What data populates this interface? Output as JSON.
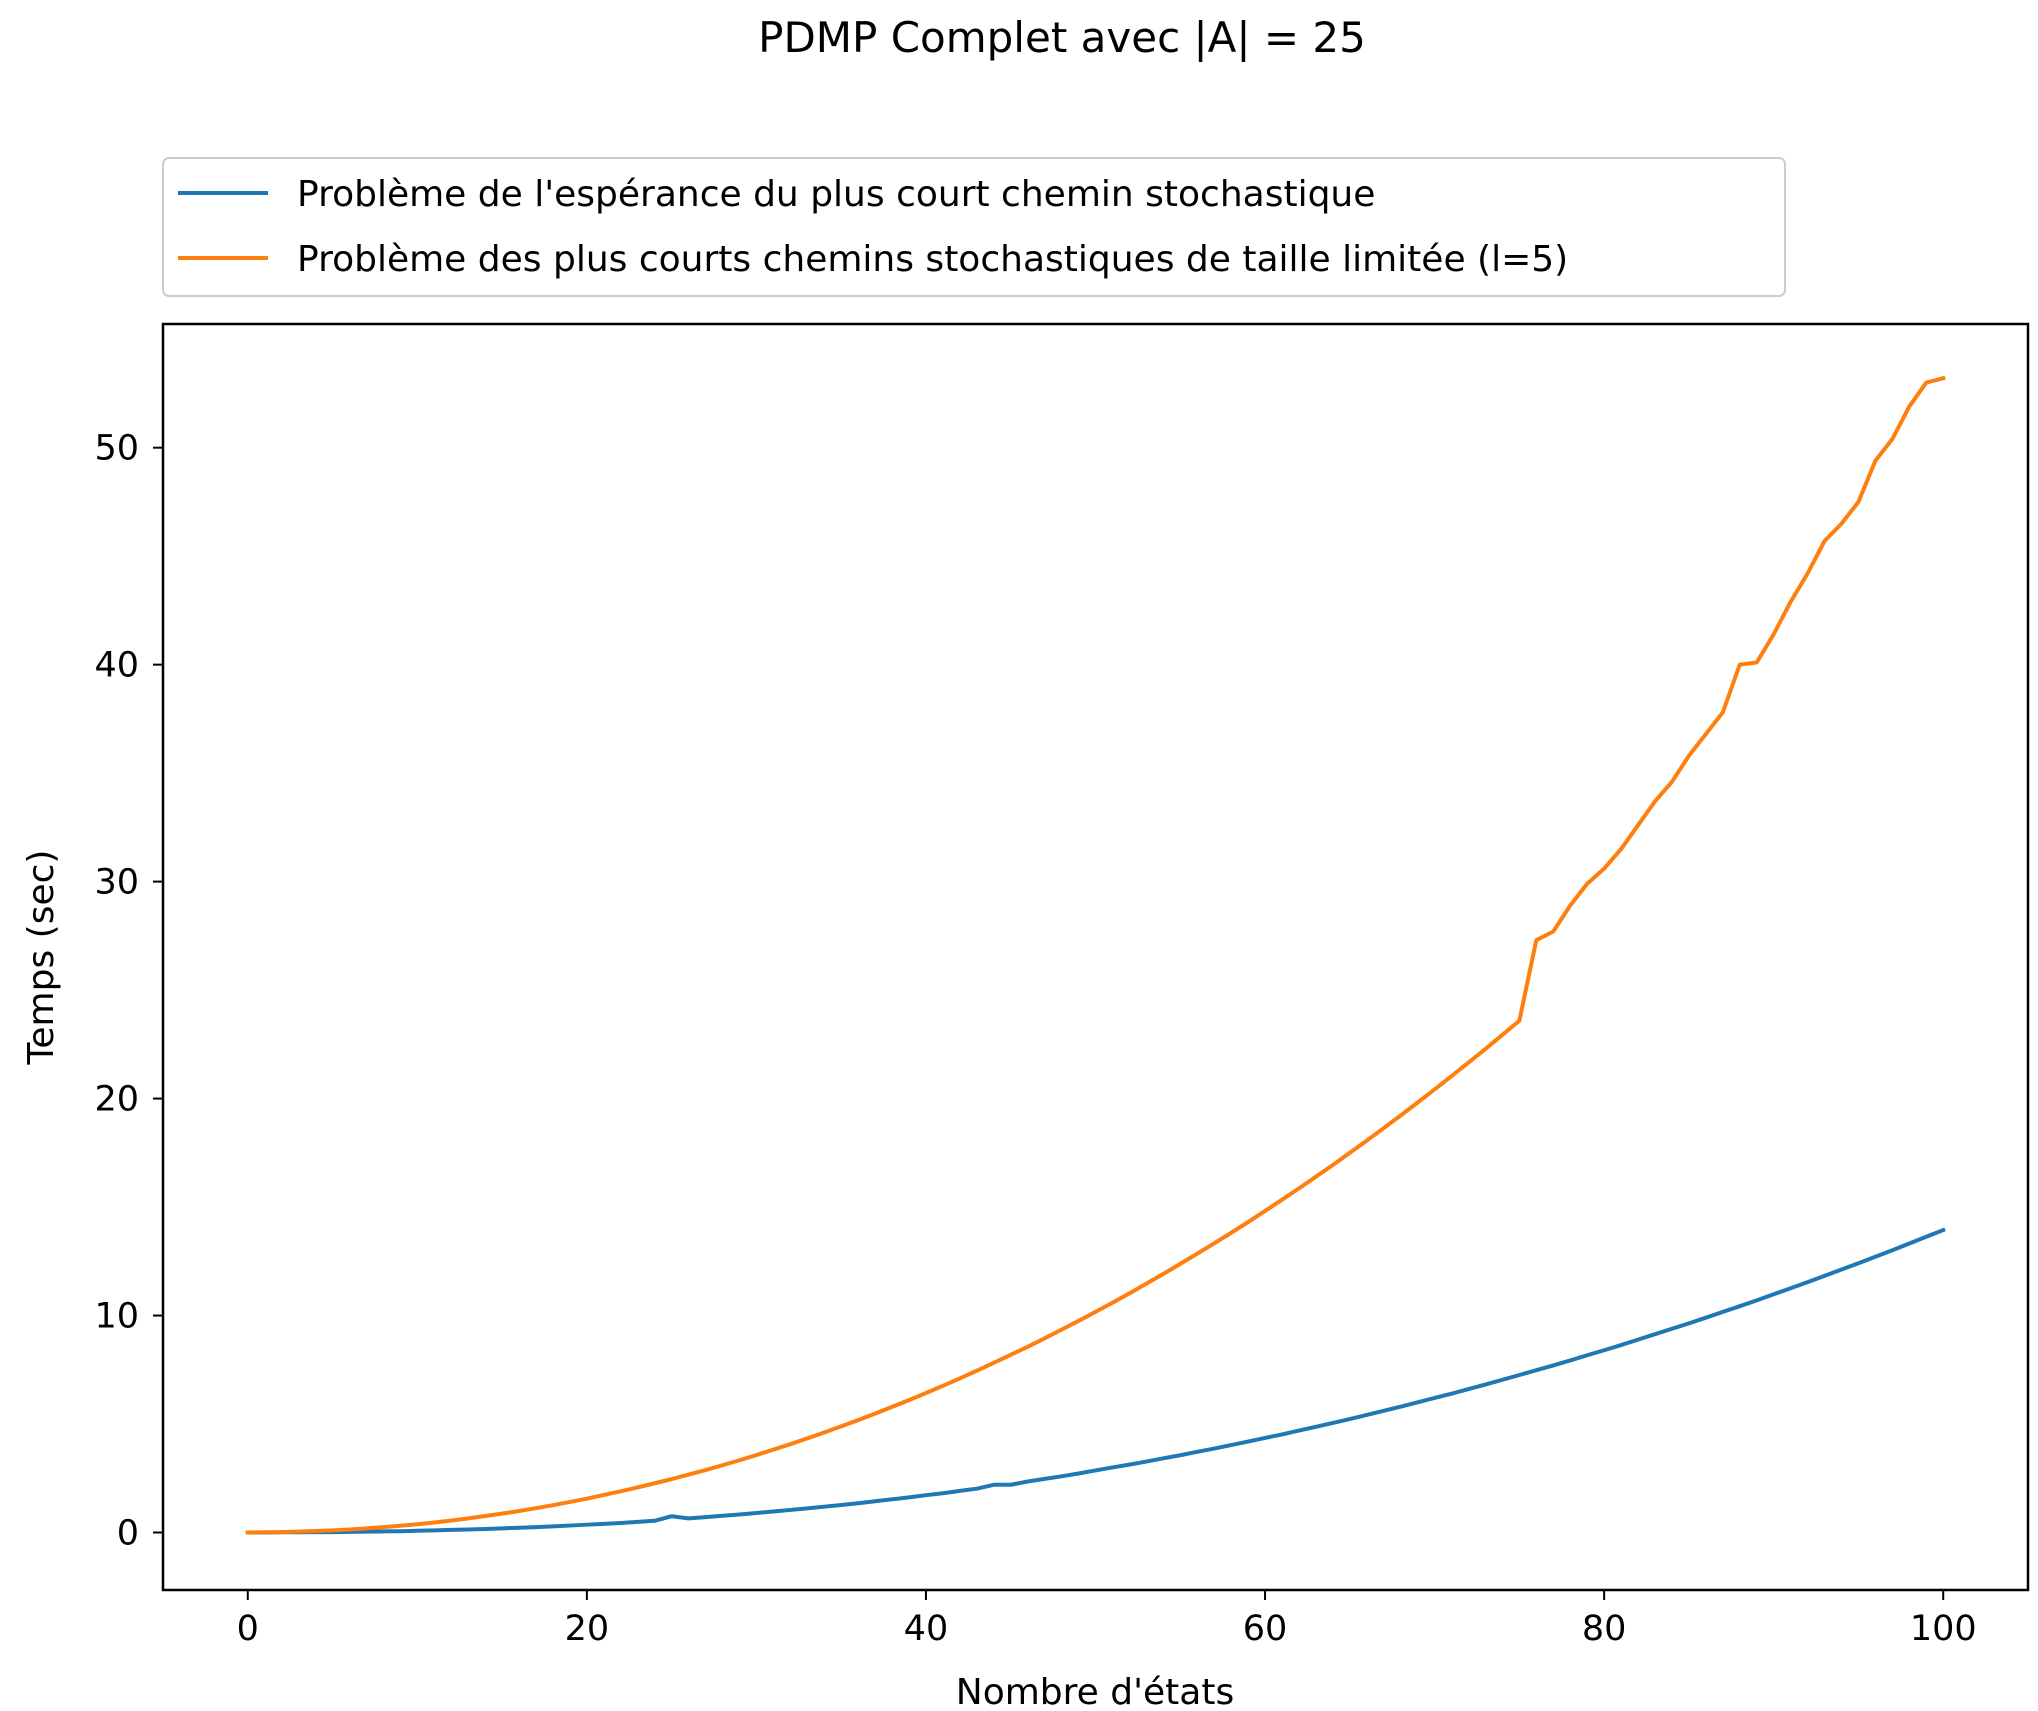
{
  "chart_data": {
    "type": "line",
    "title": "PDMP Complet avec |A| = 25",
    "xlabel": "Nombre d'états",
    "ylabel": "Temps (sec)",
    "xlim": [
      -5,
      105
    ],
    "ylim": [
      -2.65,
      55.7
    ],
    "xticks": [
      0,
      20,
      40,
      60,
      80,
      100
    ],
    "xtick_labels": [
      "0",
      "20",
      "40",
      "60",
      "80",
      "100"
    ],
    "yticks": [
      0,
      10,
      20,
      30,
      40,
      50
    ],
    "ytick_labels": [
      "0",
      "10",
      "20",
      "30",
      "40",
      "50"
    ],
    "grid": false,
    "legend_position": "above plot, left",
    "x": [
      0,
      1,
      2,
      3,
      4,
      5,
      6,
      7,
      8,
      9,
      10,
      11,
      12,
      13,
      14,
      15,
      16,
      17,
      18,
      19,
      20,
      21,
      22,
      23,
      24,
      25,
      26,
      27,
      28,
      29,
      30,
      31,
      32,
      33,
      34,
      35,
      36,
      37,
      38,
      39,
      40,
      41,
      42,
      43,
      44,
      45,
      46,
      47,
      48,
      49,
      50,
      51,
      52,
      53,
      54,
      55,
      56,
      57,
      58,
      59,
      60,
      61,
      62,
      63,
      64,
      65,
      66,
      67,
      68,
      69,
      70,
      71,
      72,
      73,
      74,
      75,
      76,
      77,
      78,
      79,
      80,
      81,
      82,
      83,
      84,
      85,
      86,
      87,
      88,
      89,
      90,
      91,
      92,
      93,
      94,
      95,
      96,
      97,
      98,
      99,
      100
    ],
    "series": [
      {
        "name": "Problème de l'espérance du plus court chemin stochastique",
        "color": "#1f77b4",
        "values": [
          0.0,
          0.0,
          0.01,
          0.01,
          0.02,
          0.02,
          0.03,
          0.04,
          0.05,
          0.06,
          0.08,
          0.1,
          0.12,
          0.14,
          0.16,
          0.19,
          0.22,
          0.25,
          0.28,
          0.32,
          0.36,
          0.4,
          0.44,
          0.49,
          0.54,
          0.75,
          0.65,
          0.71,
          0.77,
          0.83,
          0.9,
          0.97,
          1.04,
          1.11,
          1.19,
          1.27,
          1.35,
          1.44,
          1.53,
          1.62,
          1.72,
          1.81,
          1.92,
          2.02,
          2.2,
          2.2,
          2.35,
          2.47,
          2.59,
          2.72,
          2.86,
          3.0,
          3.13,
          3.27,
          3.42,
          3.56,
          3.72,
          3.87,
          4.03,
          4.19,
          4.36,
          4.52,
          4.7,
          4.87,
          5.05,
          5.23,
          5.42,
          5.61,
          5.8,
          6.0,
          6.2,
          6.4,
          6.61,
          6.82,
          7.04,
          7.26,
          7.48,
          7.7,
          7.93,
          8.17,
          8.4,
          8.64,
          8.89,
          9.14,
          9.39,
          9.64,
          9.9,
          10.17,
          10.43,
          10.7,
          10.98,
          11.26,
          11.54,
          11.83,
          12.12,
          12.41,
          12.71,
          13.01,
          13.32,
          13.63,
          13.94
        ]
      },
      {
        "name": "Problème des plus courts chemins stochastiques de taille limitée (l=5)",
        "color": "#ff7f0e",
        "values": [
          0.0,
          0.01,
          0.02,
          0.04,
          0.07,
          0.1,
          0.14,
          0.19,
          0.25,
          0.31,
          0.38,
          0.46,
          0.55,
          0.65,
          0.76,
          0.87,
          0.99,
          1.12,
          1.26,
          1.41,
          1.56,
          1.73,
          1.9,
          2.08,
          2.27,
          2.46,
          2.67,
          2.88,
          3.1,
          3.33,
          3.57,
          3.82,
          4.07,
          4.34,
          4.61,
          4.89,
          5.18,
          5.48,
          5.79,
          6.1,
          6.43,
          6.76,
          7.1,
          7.46,
          7.82,
          8.19,
          8.56,
          8.95,
          9.35,
          9.75,
          10.17,
          10.59,
          11.02,
          11.47,
          11.92,
          12.38,
          12.85,
          13.33,
          13.81,
          14.31,
          14.82,
          15.34,
          15.86,
          16.4,
          16.94,
          17.5,
          18.06,
          18.64,
          19.22,
          19.82,
          20.42,
          21.04,
          21.66,
          22.29,
          22.94,
          23.59,
          27.3,
          27.7,
          28.9,
          29.9,
          30.6,
          31.5,
          32.6,
          33.7,
          34.6,
          35.8,
          36.8,
          37.8,
          40.0,
          40.1,
          41.4,
          42.9,
          44.2,
          45.7,
          46.5,
          47.5,
          49.4,
          50.4,
          51.9,
          53.0,
          53.2
        ]
      }
    ]
  }
}
